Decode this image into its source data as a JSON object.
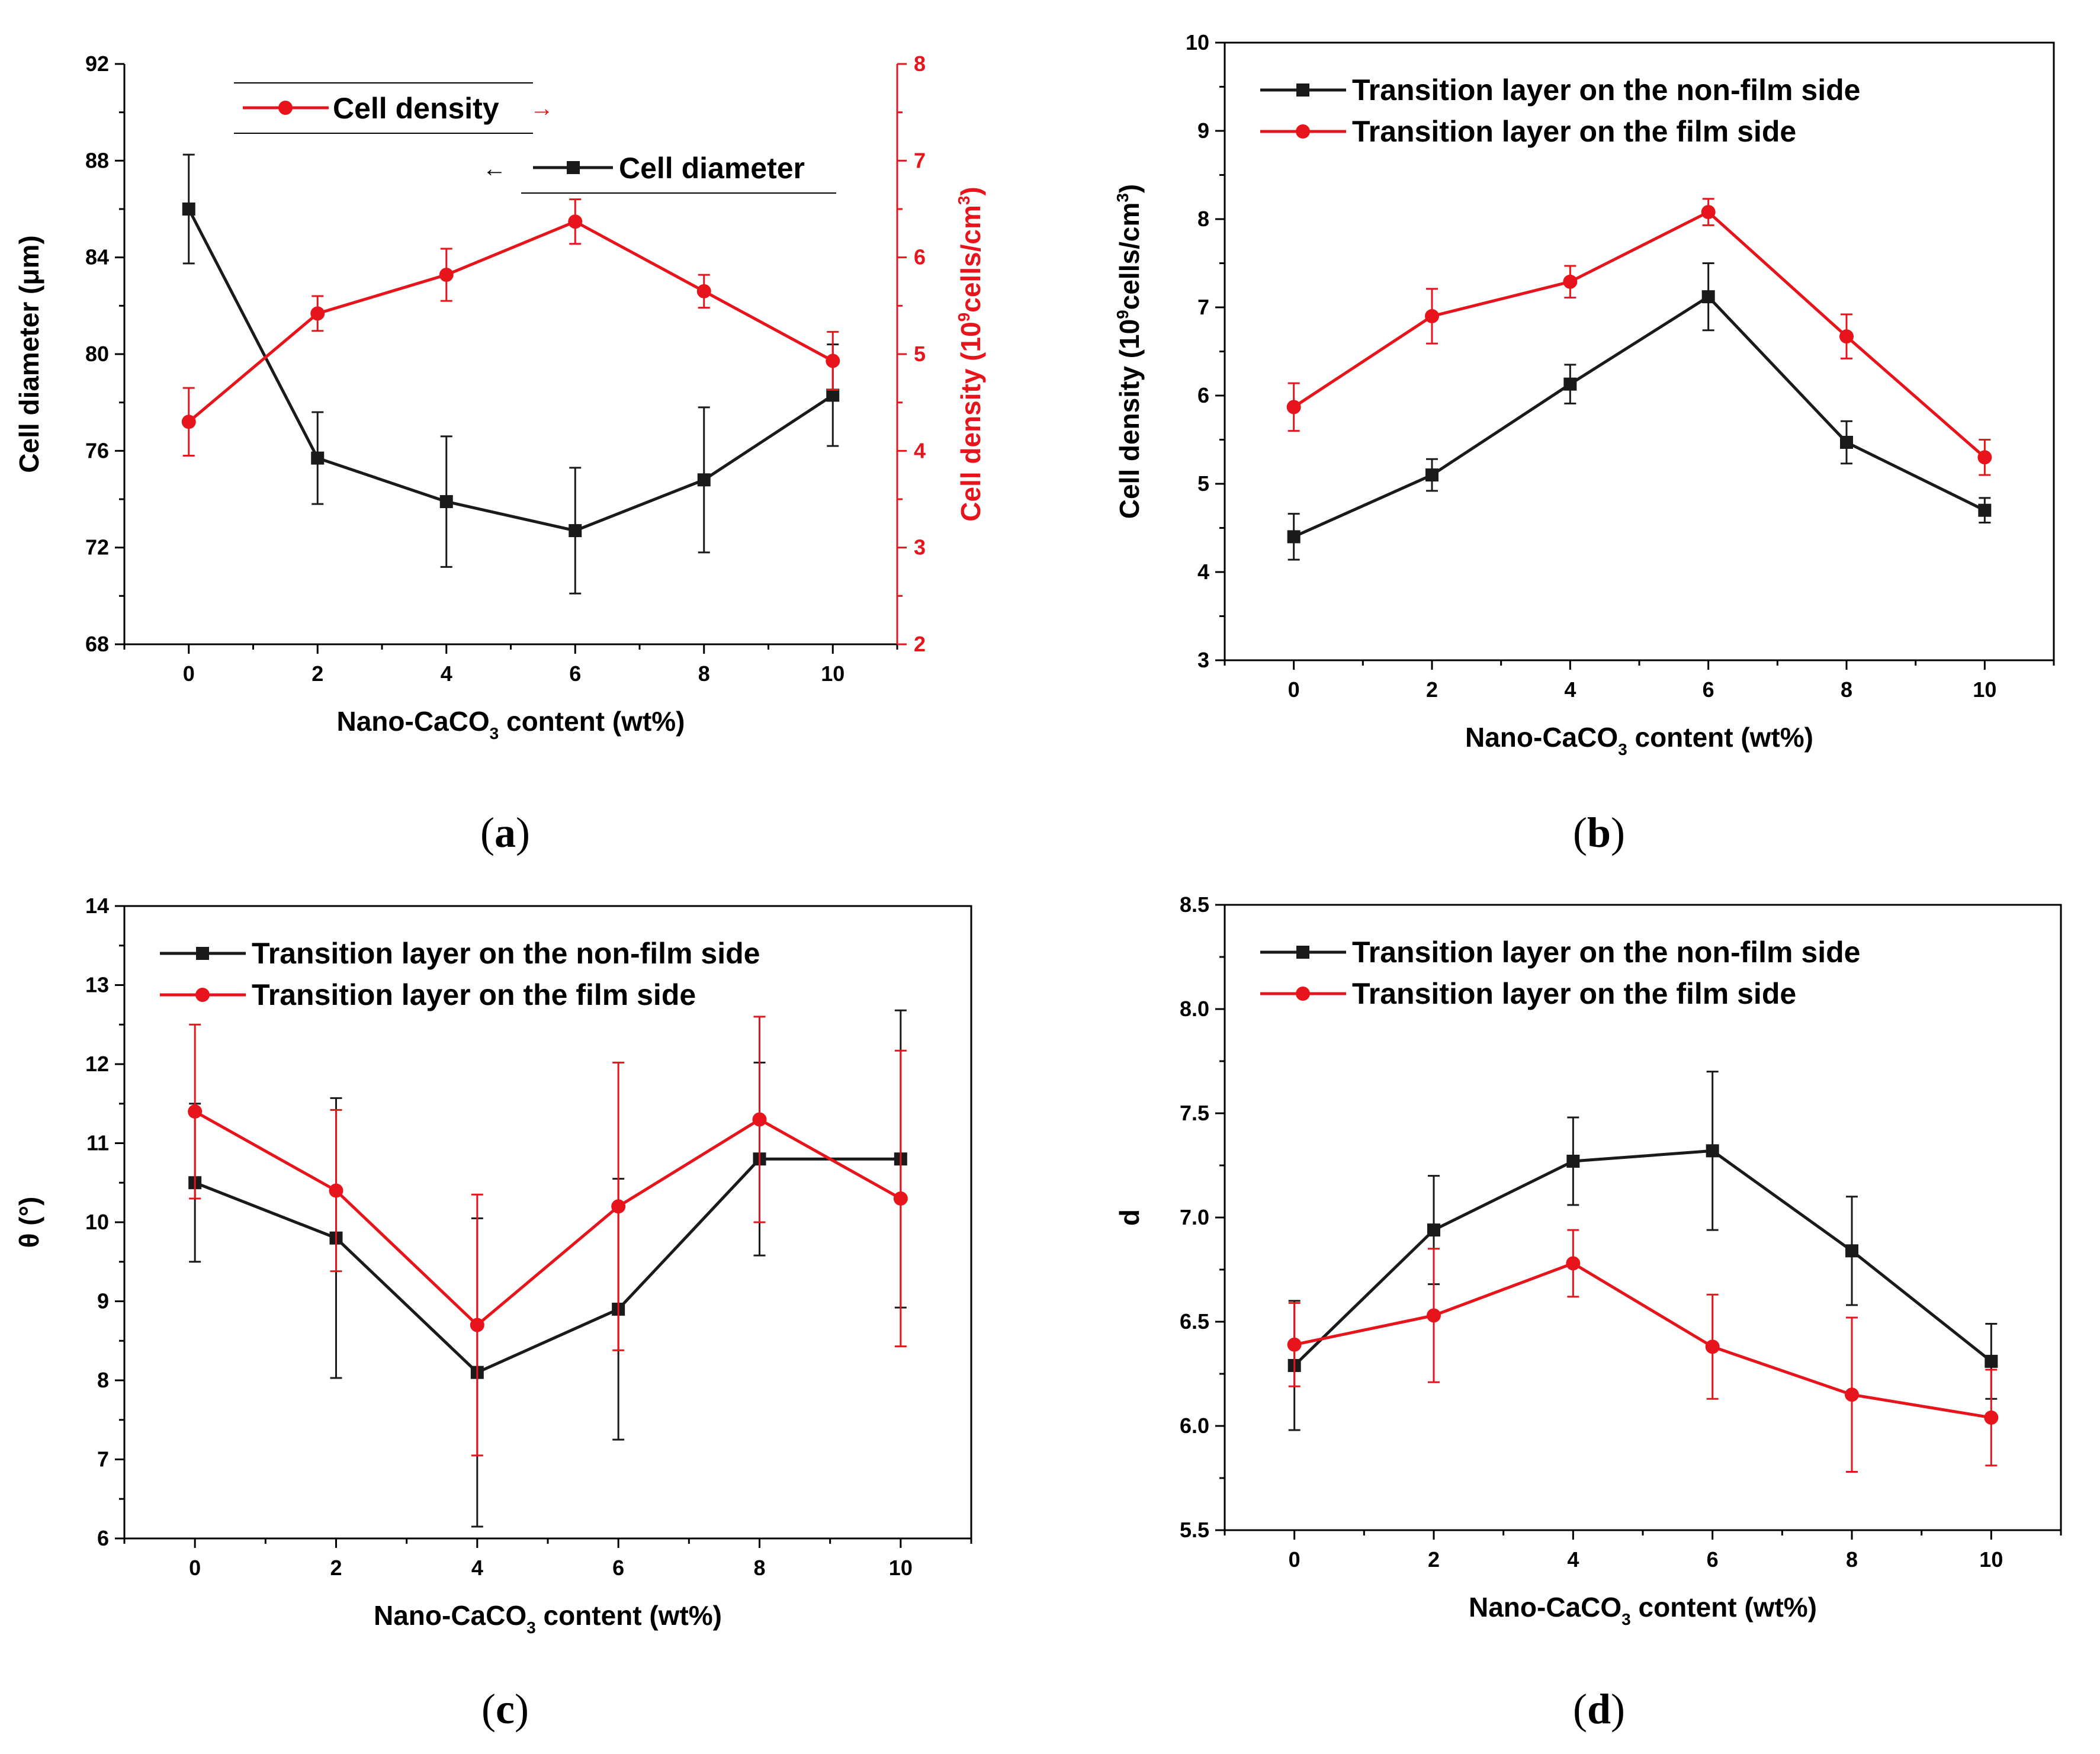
{
  "colors": {
    "black": "#1a1a1a",
    "red": "#e8141b"
  },
  "chart_data": [
    {
      "id": "a",
      "type": "line",
      "panel_label": "(a)",
      "title": "",
      "xlabel_main": "Nano-CaCO",
      "xlabel_sub": "3",
      "xlabel_tail": " content (wt%)",
      "x": [
        0,
        2,
        4,
        6,
        8,
        10
      ],
      "x_ticks": [
        "0",
        "2",
        "4",
        "6",
        "8",
        "10"
      ],
      "xlim": [
        -1,
        11
      ],
      "ylabel": "Cell diameter (μm)",
      "ylim": [
        68,
        92
      ],
      "y_ticks": [
        "68",
        "72",
        "76",
        "80",
        "84",
        "88",
        "92"
      ],
      "y2label_main": "Cell density (10",
      "y2label_sup": "9",
      "y2label_mid": "cells/cm",
      "y2label_sup2": "3",
      "y2label_end": ")",
      "y2lim": [
        2,
        8
      ],
      "y2_ticks": [
        "2",
        "3",
        "4",
        "5",
        "6",
        "7",
        "8"
      ],
      "series": [
        {
          "name": "Cell diameter",
          "axis": "left",
          "color": "#1a1a1a",
          "marker": "square",
          "values": [
            86.0,
            75.7,
            73.9,
            72.7,
            74.8,
            78.3
          ],
          "errors": [
            2.25,
            1.9,
            2.7,
            2.6,
            3.0,
            2.1
          ],
          "legend_arrow": "←"
        },
        {
          "name": "Cell density",
          "axis": "right",
          "color": "#e8141b",
          "marker": "circle",
          "values": [
            4.3,
            5.42,
            5.82,
            6.37,
            5.65,
            4.93
          ],
          "errors": [
            0.35,
            0.18,
            0.27,
            0.23,
            0.17,
            0.3
          ],
          "legend_arrow": "→"
        }
      ]
    },
    {
      "id": "b",
      "type": "line",
      "panel_label": "(b)",
      "xlabel_main": "Nano-CaCO",
      "xlabel_sub": "3",
      "xlabel_tail": " content (wt%)",
      "x": [
        0,
        2,
        4,
        6,
        8,
        10
      ],
      "x_ticks": [
        "0",
        "2",
        "4",
        "6",
        "8",
        "10"
      ],
      "xlim": [
        -1,
        11
      ],
      "ylabel_main": "Cell density (10",
      "ylabel_sup": "9",
      "ylabel_mid": "cells/cm",
      "ylabel_sup2": "3",
      "ylabel_end": ")",
      "ylim": [
        3,
        10
      ],
      "y_ticks": [
        "3",
        "4",
        "5",
        "6",
        "7",
        "8",
        "9",
        "10"
      ],
      "legend": "top-left",
      "series": [
        {
          "name": "Transition layer on the non-film side",
          "color": "#1a1a1a",
          "marker": "square",
          "values": [
            4.4,
            5.1,
            6.13,
            7.12,
            5.47,
            4.7
          ],
          "errors": [
            0.26,
            0.18,
            0.22,
            0.38,
            0.24,
            0.14
          ]
        },
        {
          "name": "Transition layer on the film side",
          "color": "#e8141b",
          "marker": "circle",
          "values": [
            5.87,
            6.9,
            7.29,
            8.08,
            6.67,
            5.3
          ],
          "errors": [
            0.27,
            0.31,
            0.18,
            0.15,
            0.25,
            0.2
          ]
        }
      ]
    },
    {
      "id": "c",
      "type": "line",
      "panel_label": "(c)",
      "xlabel_main": "Nano-CaCO",
      "xlabel_sub": "3",
      "xlabel_tail": " content (wt%)",
      "x": [
        0,
        2,
        4,
        6,
        8,
        10
      ],
      "x_ticks": [
        "0",
        "2",
        "4",
        "6",
        "8",
        "10"
      ],
      "xlim": [
        -1,
        11
      ],
      "ylabel": "θ (°)",
      "ylim": [
        6,
        14
      ],
      "y_ticks": [
        "6",
        "7",
        "8",
        "9",
        "10",
        "11",
        "12",
        "13",
        "14"
      ],
      "legend": "top-left",
      "series": [
        {
          "name": "Transition layer on the non-film side",
          "color": "#1a1a1a",
          "marker": "square",
          "values": [
            10.5,
            9.8,
            8.1,
            8.9,
            10.8,
            10.8
          ],
          "errors": [
            1.0,
            1.77,
            1.95,
            1.65,
            1.22,
            1.88
          ]
        },
        {
          "name": "Transition layer on the film side",
          "color": "#e8141b",
          "marker": "circle",
          "values": [
            11.4,
            10.4,
            8.7,
            10.2,
            11.3,
            10.3
          ],
          "errors": [
            1.1,
            1.02,
            1.65,
            1.82,
            1.3,
            1.87
          ]
        }
      ]
    },
    {
      "id": "d",
      "type": "line",
      "panel_label": "(d)",
      "xlabel_main": "Nano-CaCO",
      "xlabel_sub": "3",
      "xlabel_tail": " content (wt%)",
      "x": [
        0,
        2,
        4,
        6,
        8,
        10
      ],
      "x_ticks": [
        "0",
        "2",
        "4",
        "6",
        "8",
        "10"
      ],
      "xlim": [
        -1,
        11
      ],
      "ylabel": "d",
      "ylim": [
        5.5,
        8.5
      ],
      "y_ticks": [
        "5.5",
        "6.0",
        "6.5",
        "7.0",
        "7.5",
        "8.0",
        "8.5"
      ],
      "legend": "top-left",
      "series": [
        {
          "name": "Transition layer on the non-film side",
          "color": "#1a1a1a",
          "marker": "square",
          "values": [
            6.29,
            6.94,
            7.27,
            7.32,
            6.84,
            6.31
          ],
          "errors": [
            0.31,
            0.26,
            0.21,
            0.38,
            0.26,
            0.18
          ]
        },
        {
          "name": "Transition layer on the film side",
          "color": "#e8141b",
          "marker": "circle",
          "values": [
            6.39,
            6.53,
            6.78,
            6.38,
            6.15,
            6.04
          ],
          "errors": [
            0.2,
            0.32,
            0.16,
            0.25,
            0.37,
            0.23
          ]
        }
      ]
    }
  ]
}
